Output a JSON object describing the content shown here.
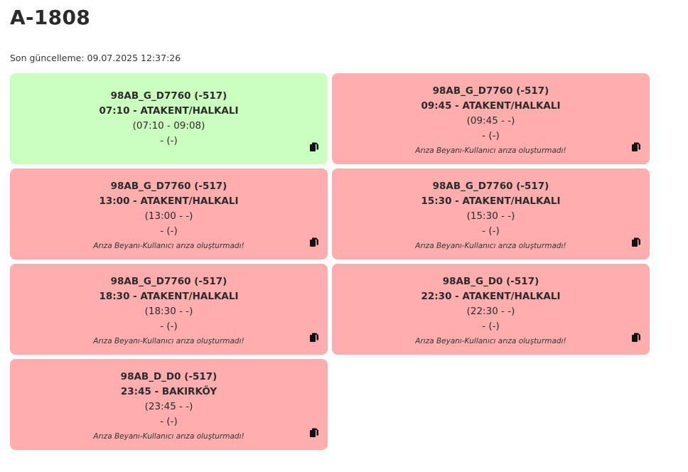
{
  "title": "A-1808",
  "updated": "Son güncelleme: 09.07.2025 12:37:26",
  "cards": [
    {
      "status": "ok",
      "code": "98AB_G_D7760 (-517)",
      "route": "07:10 - ATAKENT/HALKALI",
      "times": "(07:10 - 09:08)",
      "extra": "- (-)",
      "note": ""
    },
    {
      "status": "fault",
      "code": "98AB_G_D7760 (-517)",
      "route": "09:45 - ATAKENT/HALKALI",
      "times": "(09:45 - -)",
      "extra": "- (-)",
      "note": "Arıza Beyanı-Kullanıcı arıza oluşturmadı!"
    },
    {
      "status": "fault",
      "code": "98AB_G_D7760 (-517)",
      "route": "13:00 - ATAKENT/HALKALI",
      "times": "(13:00 - -)",
      "extra": "- (-)",
      "note": "Arıza Beyanı-Kullanıcı arıza oluşturmadı!"
    },
    {
      "status": "fault",
      "code": "98AB_G_D7760 (-517)",
      "route": "15:30 - ATAKENT/HALKALI",
      "times": "(15:30 - -)",
      "extra": "- (-)",
      "note": "Arıza Beyanı-Kullanıcı arıza oluşturmadı!"
    },
    {
      "status": "fault",
      "code": "98AB_G_D7760 (-517)",
      "route": "18:30 - ATAKENT/HALKALI",
      "times": "(18:30 - -)",
      "extra": "- (-)",
      "note": "Arıza Beyanı-Kullanıcı arıza oluşturmadı!"
    },
    {
      "status": "fault",
      "code": "98AB_G_D0 (-517)",
      "route": "22:30 - ATAKENT/HALKALI",
      "times": "(22:30 - -)",
      "extra": "- (-)",
      "note": "Arıza Beyanı-Kullanıcı arıza oluşturmadı!"
    },
    {
      "status": "fault",
      "code": "98AB_D_D0 (-517)",
      "route": "23:45 - BAKIRKÖY",
      "times": "(23:45 - -)",
      "extra": "- (-)",
      "note": "Arıza Beyanı-Kullanıcı arıza oluşturmadı!"
    }
  ],
  "colors": {
    "ok": "#caffbf",
    "fault": "#ffadad"
  },
  "icons": {
    "copy": "copy-icon"
  }
}
